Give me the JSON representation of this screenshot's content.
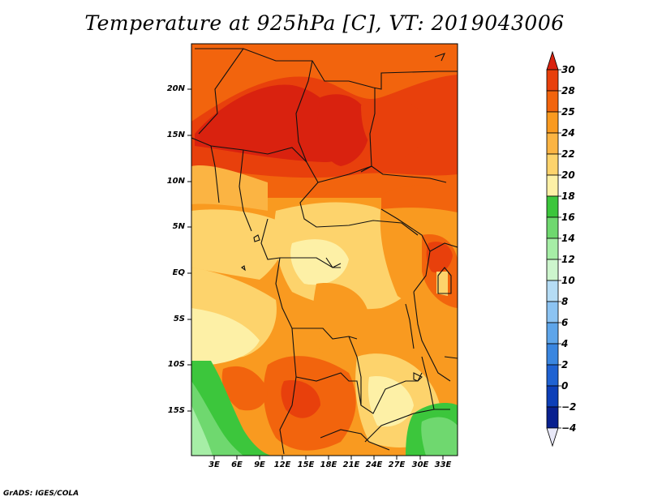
{
  "title": "Temperature at 925hPa [C], VT: 2019043006",
  "credit": "GrADS: IGES/COLA",
  "y_ticks": [
    "20N",
    "15N",
    "10N",
    "5N",
    "EQ",
    "5S",
    "10S",
    "15S"
  ],
  "x_ticks": [
    "3E",
    "6E",
    "9E",
    "12E",
    "15E",
    "18E",
    "21E",
    "24E",
    "27E",
    "30E",
    "33E"
  ],
  "colorbar": {
    "levels": [
      "30",
      "28",
      "25",
      "24",
      "22",
      "20",
      "18",
      "16",
      "14",
      "12",
      "10",
      "8",
      "6",
      "4",
      "2",
      "0",
      "−2",
      "−4"
    ],
    "colors_top_to_bottom": [
      "#d9220f",
      "#e8400c",
      "#f2640d",
      "#f99a20",
      "#fbb443",
      "#fdd36c",
      "#fdf0a6",
      "#3cc63c",
      "#6fd86f",
      "#a6eea6",
      "#cdf5cd",
      "#b5dcf5",
      "#8cc3f2",
      "#5ea5ea",
      "#3a86e0",
      "#1f62d2",
      "#0d3fb8",
      "#09208f",
      "#040a5c"
    ]
  }
}
